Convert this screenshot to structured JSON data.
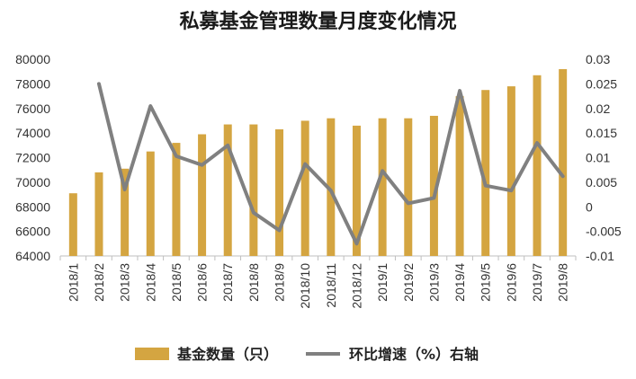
{
  "chart_data": {
    "type": "bar",
    "title": "私募基金管理数量月度变化情况",
    "categories": [
      "2018/1",
      "2018/2",
      "2018/3",
      "2018/4",
      "2018/5",
      "2018/6",
      "2018/7",
      "2018/8",
      "2018/9",
      "2018/10",
      "2018/11",
      "2018/12",
      "2019/1",
      "2019/2",
      "2019/3",
      "2019/4",
      "2019/5",
      "2019/6",
      "2019/7",
      "2019/8"
    ],
    "series": [
      {
        "name": "基金数量（只）",
        "type": "bar",
        "axis": "left",
        "color": "#D4A541",
        "values": [
          69100,
          70800,
          71100,
          72500,
          73200,
          73900,
          74700,
          74700,
          74300,
          75000,
          75200,
          74600,
          75200,
          75200,
          75400,
          77000,
          77500,
          77800,
          78700,
          79200
        ]
      },
      {
        "name": "环比增速（%）右轴",
        "type": "line",
        "axis": "right",
        "color": "#808080",
        "values": [
          null,
          0.025,
          0.0035,
          0.0205,
          0.0103,
          0.0085,
          0.0125,
          -0.0012,
          -0.0048,
          0.0087,
          0.0033,
          -0.0075,
          0.0073,
          0.0007,
          0.0018,
          0.0236,
          0.0043,
          0.0033,
          0.013,
          0.0062
        ]
      }
    ],
    "y_left": {
      "range": [
        64000,
        80000
      ],
      "ticks": [
        "64000",
        "66000",
        "68000",
        "70000",
        "72000",
        "74000",
        "76000",
        "78000",
        "80000"
      ]
    },
    "y_right": {
      "range": [
        -0.01,
        0.03
      ],
      "ticks": [
        "-0.01",
        "-0.005",
        "0",
        "0.005",
        "0.01",
        "0.015",
        "0.02",
        "0.025",
        "0.03"
      ]
    },
    "grid": false,
    "legend_position": "bottom"
  }
}
